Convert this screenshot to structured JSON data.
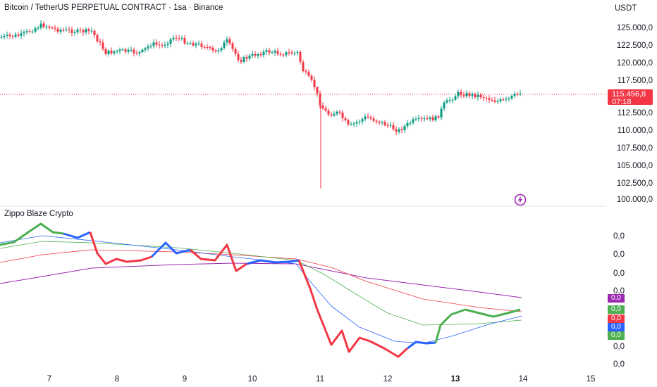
{
  "header": {
    "title": "Bitcoin / TetherUS PERPETUAL CONTRACT · 1sa · Binance",
    "currency": "USDT"
  },
  "price_axis": [
    "125.000,0",
    "122.500,0",
    "120.000,0",
    "117.500,0",
    "112.500,0",
    "110.000,0",
    "107.500,0",
    "105.000,0",
    "102.500,0",
    "100.000,0"
  ],
  "price_tag": {
    "price": "115.456,8",
    "countdown": "07:18",
    "color": "#f23645"
  },
  "indicator": {
    "title": "Zippo Blaze Crypto",
    "axis": [
      "0,0",
      "0,0",
      "0,0",
      "0,0",
      "0,0",
      "0,0"
    ],
    "badges": [
      {
        "value": "0,0",
        "color": "#9c27b0"
      },
      {
        "value": "0,0",
        "color": "#4caf50"
      },
      {
        "value": "0,0",
        "color": "#f23645"
      },
      {
        "value": "0,0",
        "color": "#2962ff"
      },
      {
        "value": "0,0",
        "color": "#4caf50"
      }
    ]
  },
  "date_axis": [
    "7",
    "8",
    "9",
    "10",
    "11",
    "12",
    "13",
    "14",
    "15"
  ],
  "colors": {
    "up": "#089981",
    "down": "#f23645",
    "purple": "#9c27b0",
    "green": "#4caf50",
    "blue": "#2962ff"
  },
  "icons": {
    "bolt": "lightning-bolt-icon"
  }
}
